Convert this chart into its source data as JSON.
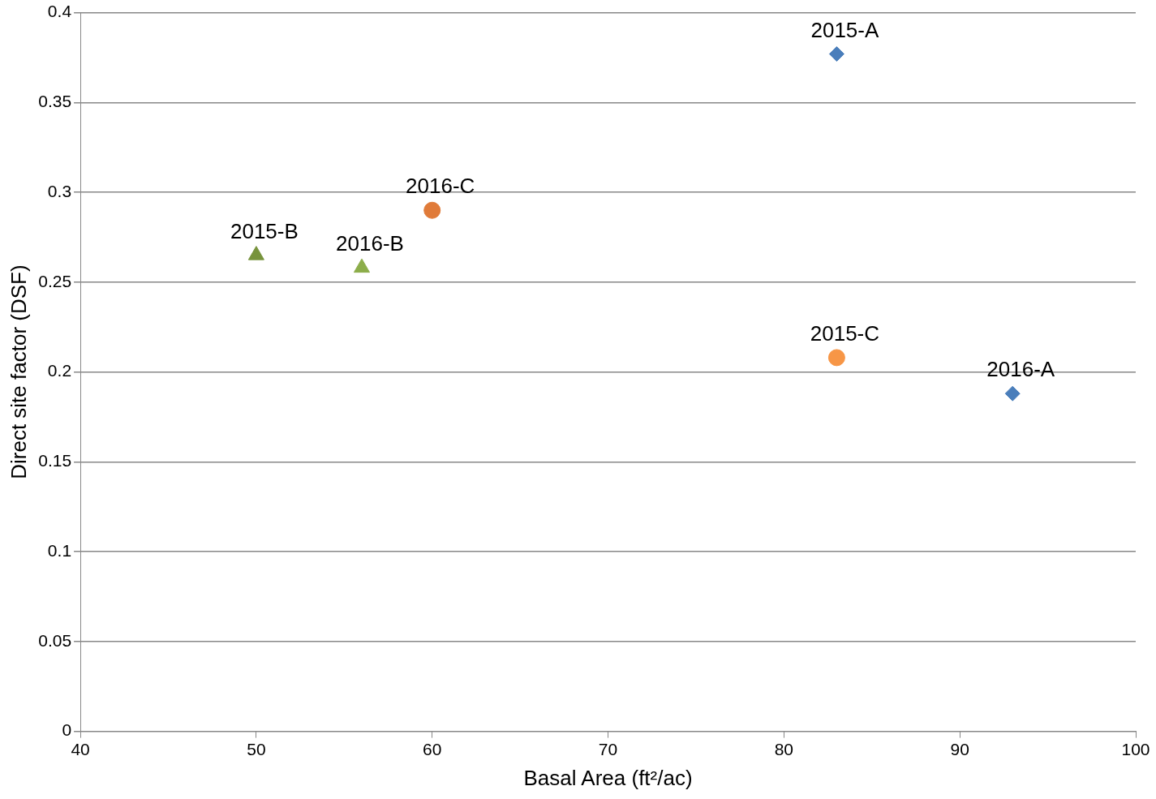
{
  "chart_data": {
    "type": "scatter",
    "xlabel": "Basal Area (ft²/ac)",
    "ylabel": "Direct site factor (DSF)",
    "xlim": [
      40,
      100
    ],
    "xticks": [
      40,
      50,
      60,
      70,
      80,
      90,
      100
    ],
    "ylim": [
      0,
      0.4
    ],
    "yticks": [
      0,
      0.05,
      0.1,
      0.15,
      0.2,
      0.25,
      0.3,
      0.35,
      0.4
    ],
    "grid": "y",
    "legend": false,
    "series": [
      {
        "name": "2015-A",
        "color": "#4a7ebb",
        "marker": "diamond",
        "x": [
          83
        ],
        "values": [
          0.377
        ]
      },
      {
        "name": "2016-A",
        "color": "#4a7ebb",
        "marker": "diamond",
        "x": [
          93
        ],
        "values": [
          0.188
        ]
      },
      {
        "name": "2015-B",
        "color": "#77933c",
        "marker": "triangle",
        "x": [
          50
        ],
        "values": [
          0.265
        ]
      },
      {
        "name": "2016-B",
        "color": "#8cad4a",
        "marker": "triangle",
        "x": [
          56
        ],
        "values": [
          0.258
        ]
      },
      {
        "name": "2016-C",
        "color": "#e07b39",
        "marker": "circle",
        "x": [
          60
        ],
        "values": [
          0.29
        ]
      },
      {
        "name": "2015-C",
        "color": "#f79646",
        "marker": "circle",
        "x": [
          83
        ],
        "values": [
          0.208
        ]
      }
    ]
  }
}
